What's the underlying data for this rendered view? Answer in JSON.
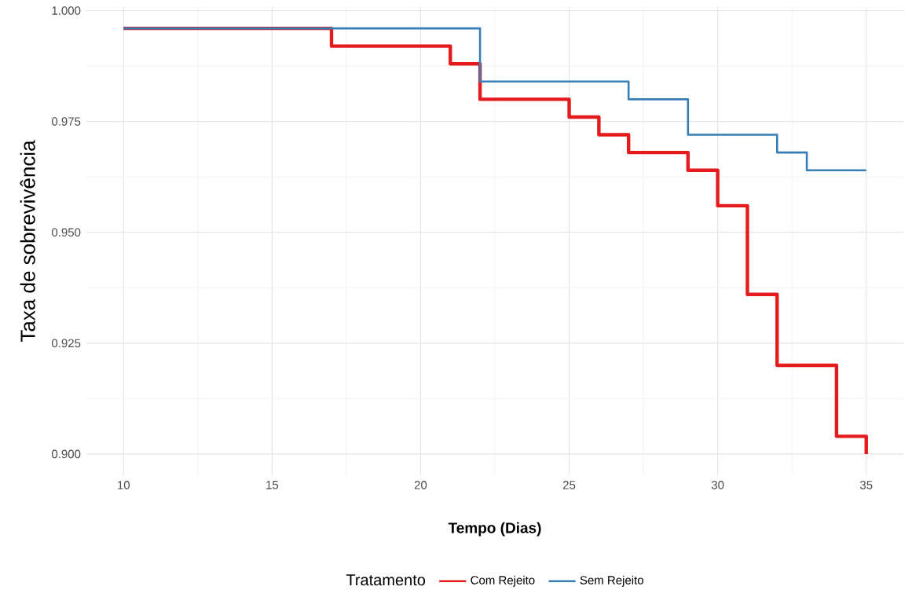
{
  "chart_data": {
    "type": "step",
    "xlabel": "Tempo (Dias)",
    "ylabel": "Taxa de sobrevivência",
    "legend_title": "Tratamento",
    "xlim": [
      8.75,
      36.25
    ],
    "ylim": [
      0.8952,
      1.0008
    ],
    "xticks": [
      10,
      15,
      20,
      25,
      30,
      35
    ],
    "yticks": [
      {
        "value": 0.9,
        "label": "0.900"
      },
      {
        "value": 0.925,
        "label": "0.925"
      },
      {
        "value": 0.95,
        "label": "0.950"
      },
      {
        "value": 0.975,
        "label": "0.975"
      },
      {
        "value": 1.0,
        "label": "1.000"
      }
    ],
    "grid": true,
    "legend": "bottom",
    "series": [
      {
        "name": "Com Rejeito",
        "color": "#e41a1c",
        "x": [
          10,
          17,
          21,
          22,
          25,
          26,
          27,
          29,
          30,
          31,
          32,
          34,
          35
        ],
        "values": [
          0.996,
          0.992,
          0.988,
          0.98,
          0.976,
          0.972,
          0.968,
          0.964,
          0.956,
          0.936,
          0.92,
          0.904,
          0.9
        ]
      },
      {
        "name": "Sem Rejeito",
        "color": "#377eb8",
        "x": [
          10,
          22,
          27,
          29,
          32,
          33,
          35
        ],
        "values": [
          0.996,
          0.984,
          0.98,
          0.972,
          0.968,
          0.964,
          0.964
        ]
      }
    ]
  }
}
